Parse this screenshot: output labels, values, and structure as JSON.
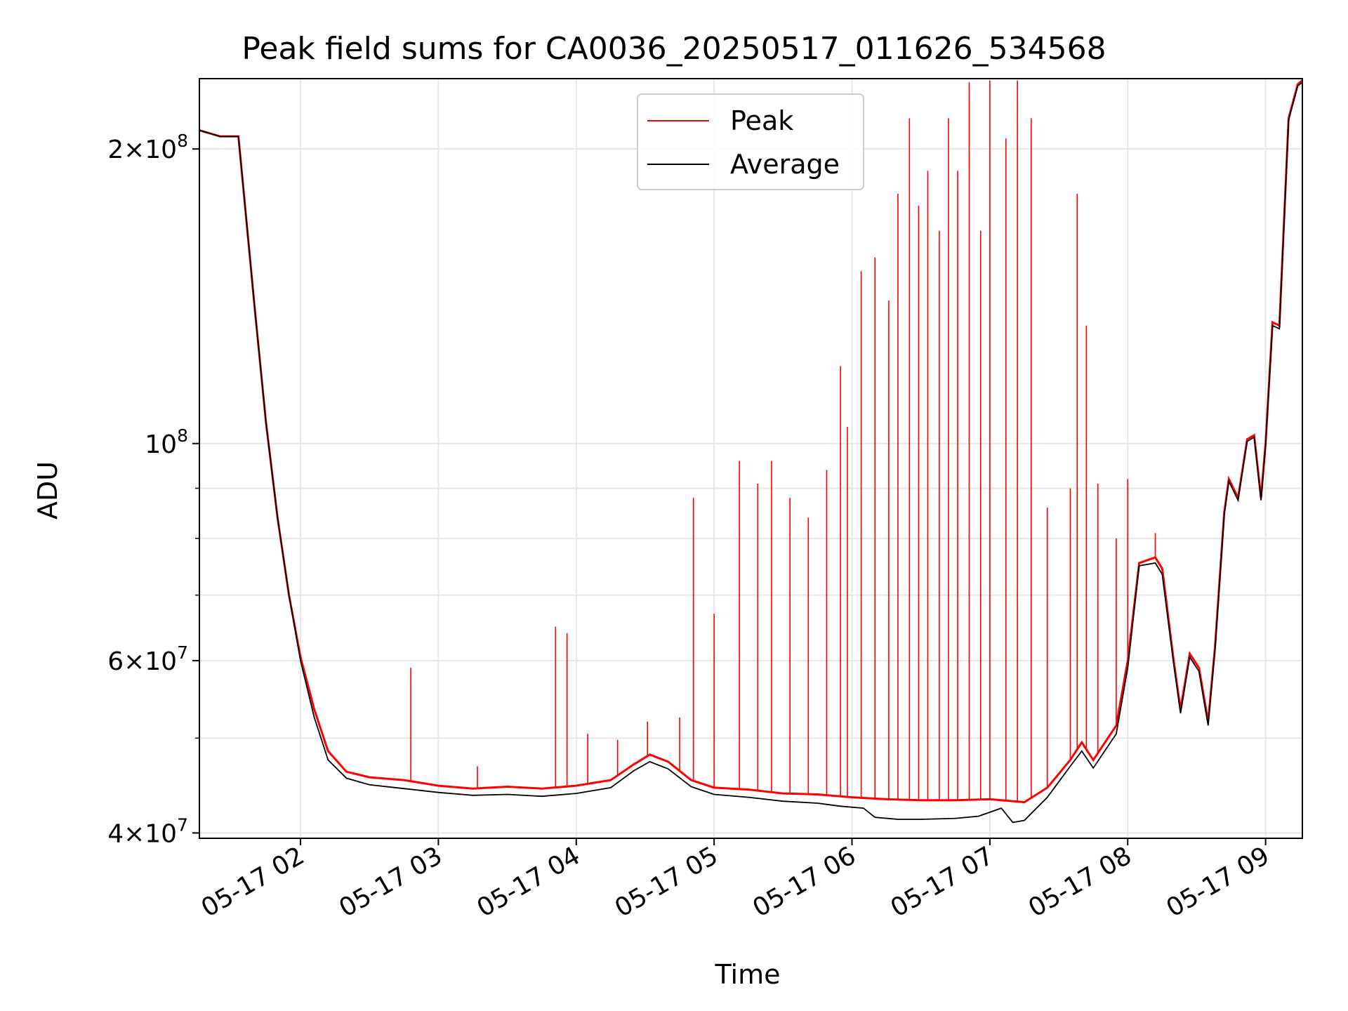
{
  "chart_data": {
    "type": "line",
    "title": "Peak field sums for CA0036_20250517_011626_534568",
    "xlabel": "Time",
    "ylabel": "ADU",
    "y_scale": "log",
    "ylim": [
      39500000,
      236000000
    ],
    "xlim": [
      "05-17 01:16",
      "05-17 09:16"
    ],
    "grid": true,
    "legend_position": "top-center",
    "x_ticks": [
      {
        "t": "05-17 02:00",
        "label": "05-17 02"
      },
      {
        "t": "05-17 03:00",
        "label": "05-17 03"
      },
      {
        "t": "05-17 04:00",
        "label": "05-17 04"
      },
      {
        "t": "05-17 05:00",
        "label": "05-17 05"
      },
      {
        "t": "05-17 06:00",
        "label": "05-17 06"
      },
      {
        "t": "05-17 07:00",
        "label": "05-17 07"
      },
      {
        "t": "05-17 08:00",
        "label": "05-17 08"
      },
      {
        "t": "05-17 09:00",
        "label": "05-17 09"
      }
    ],
    "y_ticks_major": [
      {
        "value": 40000000,
        "mant": "4",
        "exp": "7"
      },
      {
        "value": 60000000,
        "mant": "6",
        "exp": "7"
      },
      {
        "value": 100000000,
        "mant": "",
        "exp": "8"
      },
      {
        "value": 200000000,
        "mant": "2",
        "exp": "8"
      }
    ],
    "y_ticks_minor": [
      50000000,
      70000000,
      80000000,
      90000000
    ],
    "colors": {
      "peak": "#ff0000",
      "average": "#000000",
      "grid": "#e6e6e6"
    },
    "series": [
      {
        "name": "Peak",
        "color": "#ff0000",
        "points": [
          [
            "05-17 01:16",
            209000000
          ],
          [
            "05-17 01:25",
            206000000
          ],
          [
            "05-17 01:33",
            206000000
          ],
          [
            "05-17 01:40",
            138000000
          ],
          [
            "05-17 01:45",
            105000000
          ],
          [
            "05-17 01:50",
            84000000
          ],
          [
            "05-17 01:55",
            70000000
          ],
          [
            "05-17 02:00",
            60500000
          ],
          [
            "05-17 02:06",
            53500000
          ],
          [
            "05-17 02:12",
            48500000
          ],
          [
            "05-17 02:20",
            46200000
          ],
          [
            "05-17 02:30",
            45600000
          ],
          [
            "05-17 02:45",
            45300000
          ],
          [
            "05-17 03:00",
            44700000
          ],
          [
            "05-17 03:15",
            44400000
          ],
          [
            "05-17 03:30",
            44600000
          ],
          [
            "05-17 03:45",
            44400000
          ],
          [
            "05-17 04:00",
            44700000
          ],
          [
            "05-17 04:15",
            45300000
          ],
          [
            "05-17 04:25",
            47000000
          ],
          [
            "05-17 04:32",
            48100000
          ],
          [
            "05-17 04:40",
            47300000
          ],
          [
            "05-17 04:50",
            45300000
          ],
          [
            "05-17 05:00",
            44500000
          ],
          [
            "05-17 05:15",
            44300000
          ],
          [
            "05-17 05:30",
            43900000
          ],
          [
            "05-17 05:45",
            43800000
          ],
          [
            "05-17 06:00",
            43500000
          ],
          [
            "05-17 06:15",
            43300000
          ],
          [
            "05-17 06:30",
            43200000
          ],
          [
            "05-17 06:45",
            43200000
          ],
          [
            "05-17 07:00",
            43300000
          ],
          [
            "05-17 07:15",
            43000000
          ],
          [
            "05-17 07:25",
            44500000
          ],
          [
            "05-17 07:35",
            47500000
          ],
          [
            "05-17 07:40",
            49500000
          ],
          [
            "05-17 07:45",
            47500000
          ],
          [
            "05-17 07:55",
            51500000
          ],
          [
            "05-17 08:00",
            60000000
          ],
          [
            "05-17 08:05",
            75500000
          ],
          [
            "05-17 08:12",
            76500000
          ],
          [
            "05-17 08:15",
            74500000
          ],
          [
            "05-17 08:20",
            60000000
          ],
          [
            "05-17 08:23",
            53500000
          ],
          [
            "05-17 08:27",
            61000000
          ],
          [
            "05-17 08:31",
            59000000
          ],
          [
            "05-17 08:35",
            52000000
          ],
          [
            "05-17 08:38",
            62000000
          ],
          [
            "05-17 08:42",
            85000000
          ],
          [
            "05-17 08:44",
            92000000
          ],
          [
            "05-17 08:48",
            88000000
          ],
          [
            "05-17 08:52",
            101000000
          ],
          [
            "05-17 08:55",
            102000000
          ],
          [
            "05-17 08:58",
            88000000
          ],
          [
            "05-17 09:00",
            100000000
          ],
          [
            "05-17 09:03",
            133000000
          ],
          [
            "05-17 09:06",
            132000000
          ],
          [
            "05-17 09:10",
            215000000
          ],
          [
            "05-17 09:14",
            233000000
          ],
          [
            "05-17 09:16",
            235000000
          ]
        ],
        "spikes": [
          [
            "05-17 02:48",
            59000000
          ],
          [
            "05-17 03:17",
            46800000
          ],
          [
            "05-17 03:51",
            65000000
          ],
          [
            "05-17 03:56",
            64000000
          ],
          [
            "05-17 04:05",
            50500000
          ],
          [
            "05-17 04:18",
            49800000
          ],
          [
            "05-17 04:31",
            52000000
          ],
          [
            "05-17 04:45",
            52500000
          ],
          [
            "05-17 04:51",
            88000000
          ],
          [
            "05-17 05:00",
            67000000
          ],
          [
            "05-17 05:11",
            96000000
          ],
          [
            "05-17 05:19",
            91000000
          ],
          [
            "05-17 05:25",
            96000000
          ],
          [
            "05-17 05:33",
            88000000
          ],
          [
            "05-17 05:41",
            84000000
          ],
          [
            "05-17 05:49",
            94000000
          ],
          [
            "05-17 05:55",
            120000000
          ],
          [
            "05-17 05:58",
            104000000
          ],
          [
            "05-17 06:04",
            150000000
          ],
          [
            "05-17 06:10",
            155000000
          ],
          [
            "05-17 06:16",
            140000000
          ],
          [
            "05-17 06:20",
            180000000
          ],
          [
            "05-17 06:25",
            215000000
          ],
          [
            "05-17 06:29",
            175000000
          ],
          [
            "05-17 06:33",
            190000000
          ],
          [
            "05-17 06:38",
            165000000
          ],
          [
            "05-17 06:42",
            215000000
          ],
          [
            "05-17 06:46",
            190000000
          ],
          [
            "05-17 06:51",
            234000000
          ],
          [
            "05-17 06:56",
            165000000
          ],
          [
            "05-17 07:00",
            235000000
          ],
          [
            "05-17 07:07",
            205000000
          ],
          [
            "05-17 07:12",
            235000000
          ],
          [
            "05-17 07:18",
            215000000
          ],
          [
            "05-17 07:25",
            86000000
          ],
          [
            "05-17 07:35",
            90000000
          ],
          [
            "05-17 07:38",
            180000000
          ],
          [
            "05-17 07:42",
            132000000
          ],
          [
            "05-17 07:47",
            91000000
          ],
          [
            "05-17 07:55",
            80000000
          ],
          [
            "05-17 08:00",
            92000000
          ],
          [
            "05-17 08:12",
            81000000
          ]
        ]
      },
      {
        "name": "Average",
        "color": "#000000",
        "points": [
          [
            "05-17 01:16",
            209000000
          ],
          [
            "05-17 01:25",
            206000000
          ],
          [
            "05-17 01:33",
            206000000
          ],
          [
            "05-17 01:40",
            138000000
          ],
          [
            "05-17 01:45",
            105000000
          ],
          [
            "05-17 01:50",
            84000000
          ],
          [
            "05-17 01:55",
            70000000
          ],
          [
            "05-17 02:00",
            60000000
          ],
          [
            "05-17 02:06",
            52500000
          ],
          [
            "05-17 02:12",
            47500000
          ],
          [
            "05-17 02:20",
            45500000
          ],
          [
            "05-17 02:30",
            44800000
          ],
          [
            "05-17 02:45",
            44400000
          ],
          [
            "05-17 03:00",
            44000000
          ],
          [
            "05-17 03:15",
            43700000
          ],
          [
            "05-17 03:30",
            43800000
          ],
          [
            "05-17 03:45",
            43600000
          ],
          [
            "05-17 04:00",
            43900000
          ],
          [
            "05-17 04:15",
            44500000
          ],
          [
            "05-17 04:25",
            46300000
          ],
          [
            "05-17 04:32",
            47300000
          ],
          [
            "05-17 04:40",
            46500000
          ],
          [
            "05-17 04:50",
            44600000
          ],
          [
            "05-17 05:00",
            43800000
          ],
          [
            "05-17 05:15",
            43500000
          ],
          [
            "05-17 05:30",
            43100000
          ],
          [
            "05-17 05:45",
            42900000
          ],
          [
            "05-17 05:55",
            42600000
          ],
          [
            "05-17 06:05",
            42400000
          ],
          [
            "05-17 06:10",
            41500000
          ],
          [
            "05-17 06:20",
            41300000
          ],
          [
            "05-17 06:30",
            41300000
          ],
          [
            "05-17 06:45",
            41400000
          ],
          [
            "05-17 06:55",
            41600000
          ],
          [
            "05-17 07:00",
            42000000
          ],
          [
            "05-17 07:05",
            42400000
          ],
          [
            "05-17 07:10",
            41000000
          ],
          [
            "05-17 07:15",
            41200000
          ],
          [
            "05-17 07:25",
            43500000
          ],
          [
            "05-17 07:35",
            46800000
          ],
          [
            "05-17 07:40",
            48500000
          ],
          [
            "05-17 07:45",
            46600000
          ],
          [
            "05-17 07:55",
            50500000
          ],
          [
            "05-17 08:00",
            59000000
          ],
          [
            "05-17 08:05",
            75000000
          ],
          [
            "05-17 08:12",
            75500000
          ],
          [
            "05-17 08:15",
            73500000
          ],
          [
            "05-17 08:20",
            59500000
          ],
          [
            "05-17 08:23",
            53000000
          ],
          [
            "05-17 08:27",
            60500000
          ],
          [
            "05-17 08:31",
            58500000
          ],
          [
            "05-17 08:35",
            51500000
          ],
          [
            "05-17 08:38",
            61500000
          ],
          [
            "05-17 08:42",
            84500000
          ],
          [
            "05-17 08:44",
            91500000
          ],
          [
            "05-17 08:48",
            87500000
          ],
          [
            "05-17 08:52",
            100500000
          ],
          [
            "05-17 08:55",
            101500000
          ],
          [
            "05-17 08:58",
            87500000
          ],
          [
            "05-17 09:00",
            99500000
          ],
          [
            "05-17 09:03",
            132000000
          ],
          [
            "05-17 09:06",
            131000000
          ],
          [
            "05-17 09:10",
            214000000
          ],
          [
            "05-17 09:14",
            232000000
          ],
          [
            "05-17 09:16",
            234000000
          ]
        ]
      }
    ]
  }
}
